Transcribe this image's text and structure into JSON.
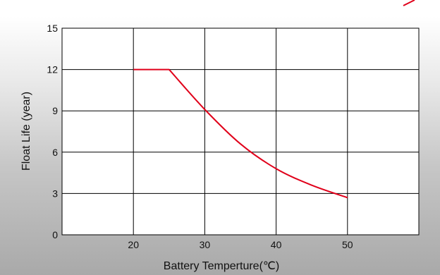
{
  "chart_data": {
    "type": "line",
    "title": "",
    "xlabel": "Battery  Temperture(℃)",
    "ylabel": "Float Life (year)",
    "xlim": [
      10,
      60
    ],
    "ylim": [
      0,
      15
    ],
    "xticks": [
      20,
      30,
      40,
      50
    ],
    "yticks": [
      0,
      3,
      6,
      9,
      12,
      15
    ],
    "grid": true,
    "legend": "none",
    "series": [
      {
        "color": "#e0001a",
        "x": [
          20,
          25,
          30,
          35,
          40,
          45,
          50
        ],
        "y": [
          12,
          12,
          9.1,
          6.6,
          4.8,
          3.6,
          2.7
        ]
      }
    ]
  }
}
